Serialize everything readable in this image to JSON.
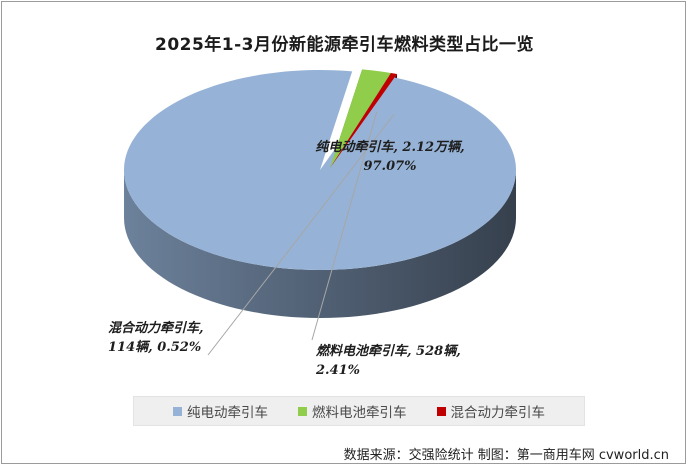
{
  "chart_data": {
    "type": "pie",
    "title": "2025年1-3月份新能源牵引车燃料类型占比一览",
    "slices": [
      {
        "name": "纯电动牵引车",
        "value": 97.07,
        "label_lines": [
          "纯电动牵引车, 2.12万辆,",
          "97.07%"
        ]
      },
      {
        "name": "燃料电池牵引车",
        "value": 2.41,
        "label_lines": [
          "燃料电池牵引车, 528辆,",
          "2.41%"
        ]
      },
      {
        "name": "混合动力牵引车",
        "value": 0.52,
        "label_lines": [
          "混合动力牵引车,",
          "114辆, 0.52%"
        ]
      }
    ],
    "legend": [
      "纯电动牵引车",
      "燃料电池牵引车",
      "混合动力牵引车"
    ],
    "legend_position": "bottom",
    "style": "3d-exploded"
  },
  "colors": {
    "electric": "#96b3d7",
    "fuel_cell": "#8fcd4a",
    "hybrid": "#c00000"
  },
  "source": "数据来源：交强险统计 制图：第一商用车网 cvworld.cn"
}
